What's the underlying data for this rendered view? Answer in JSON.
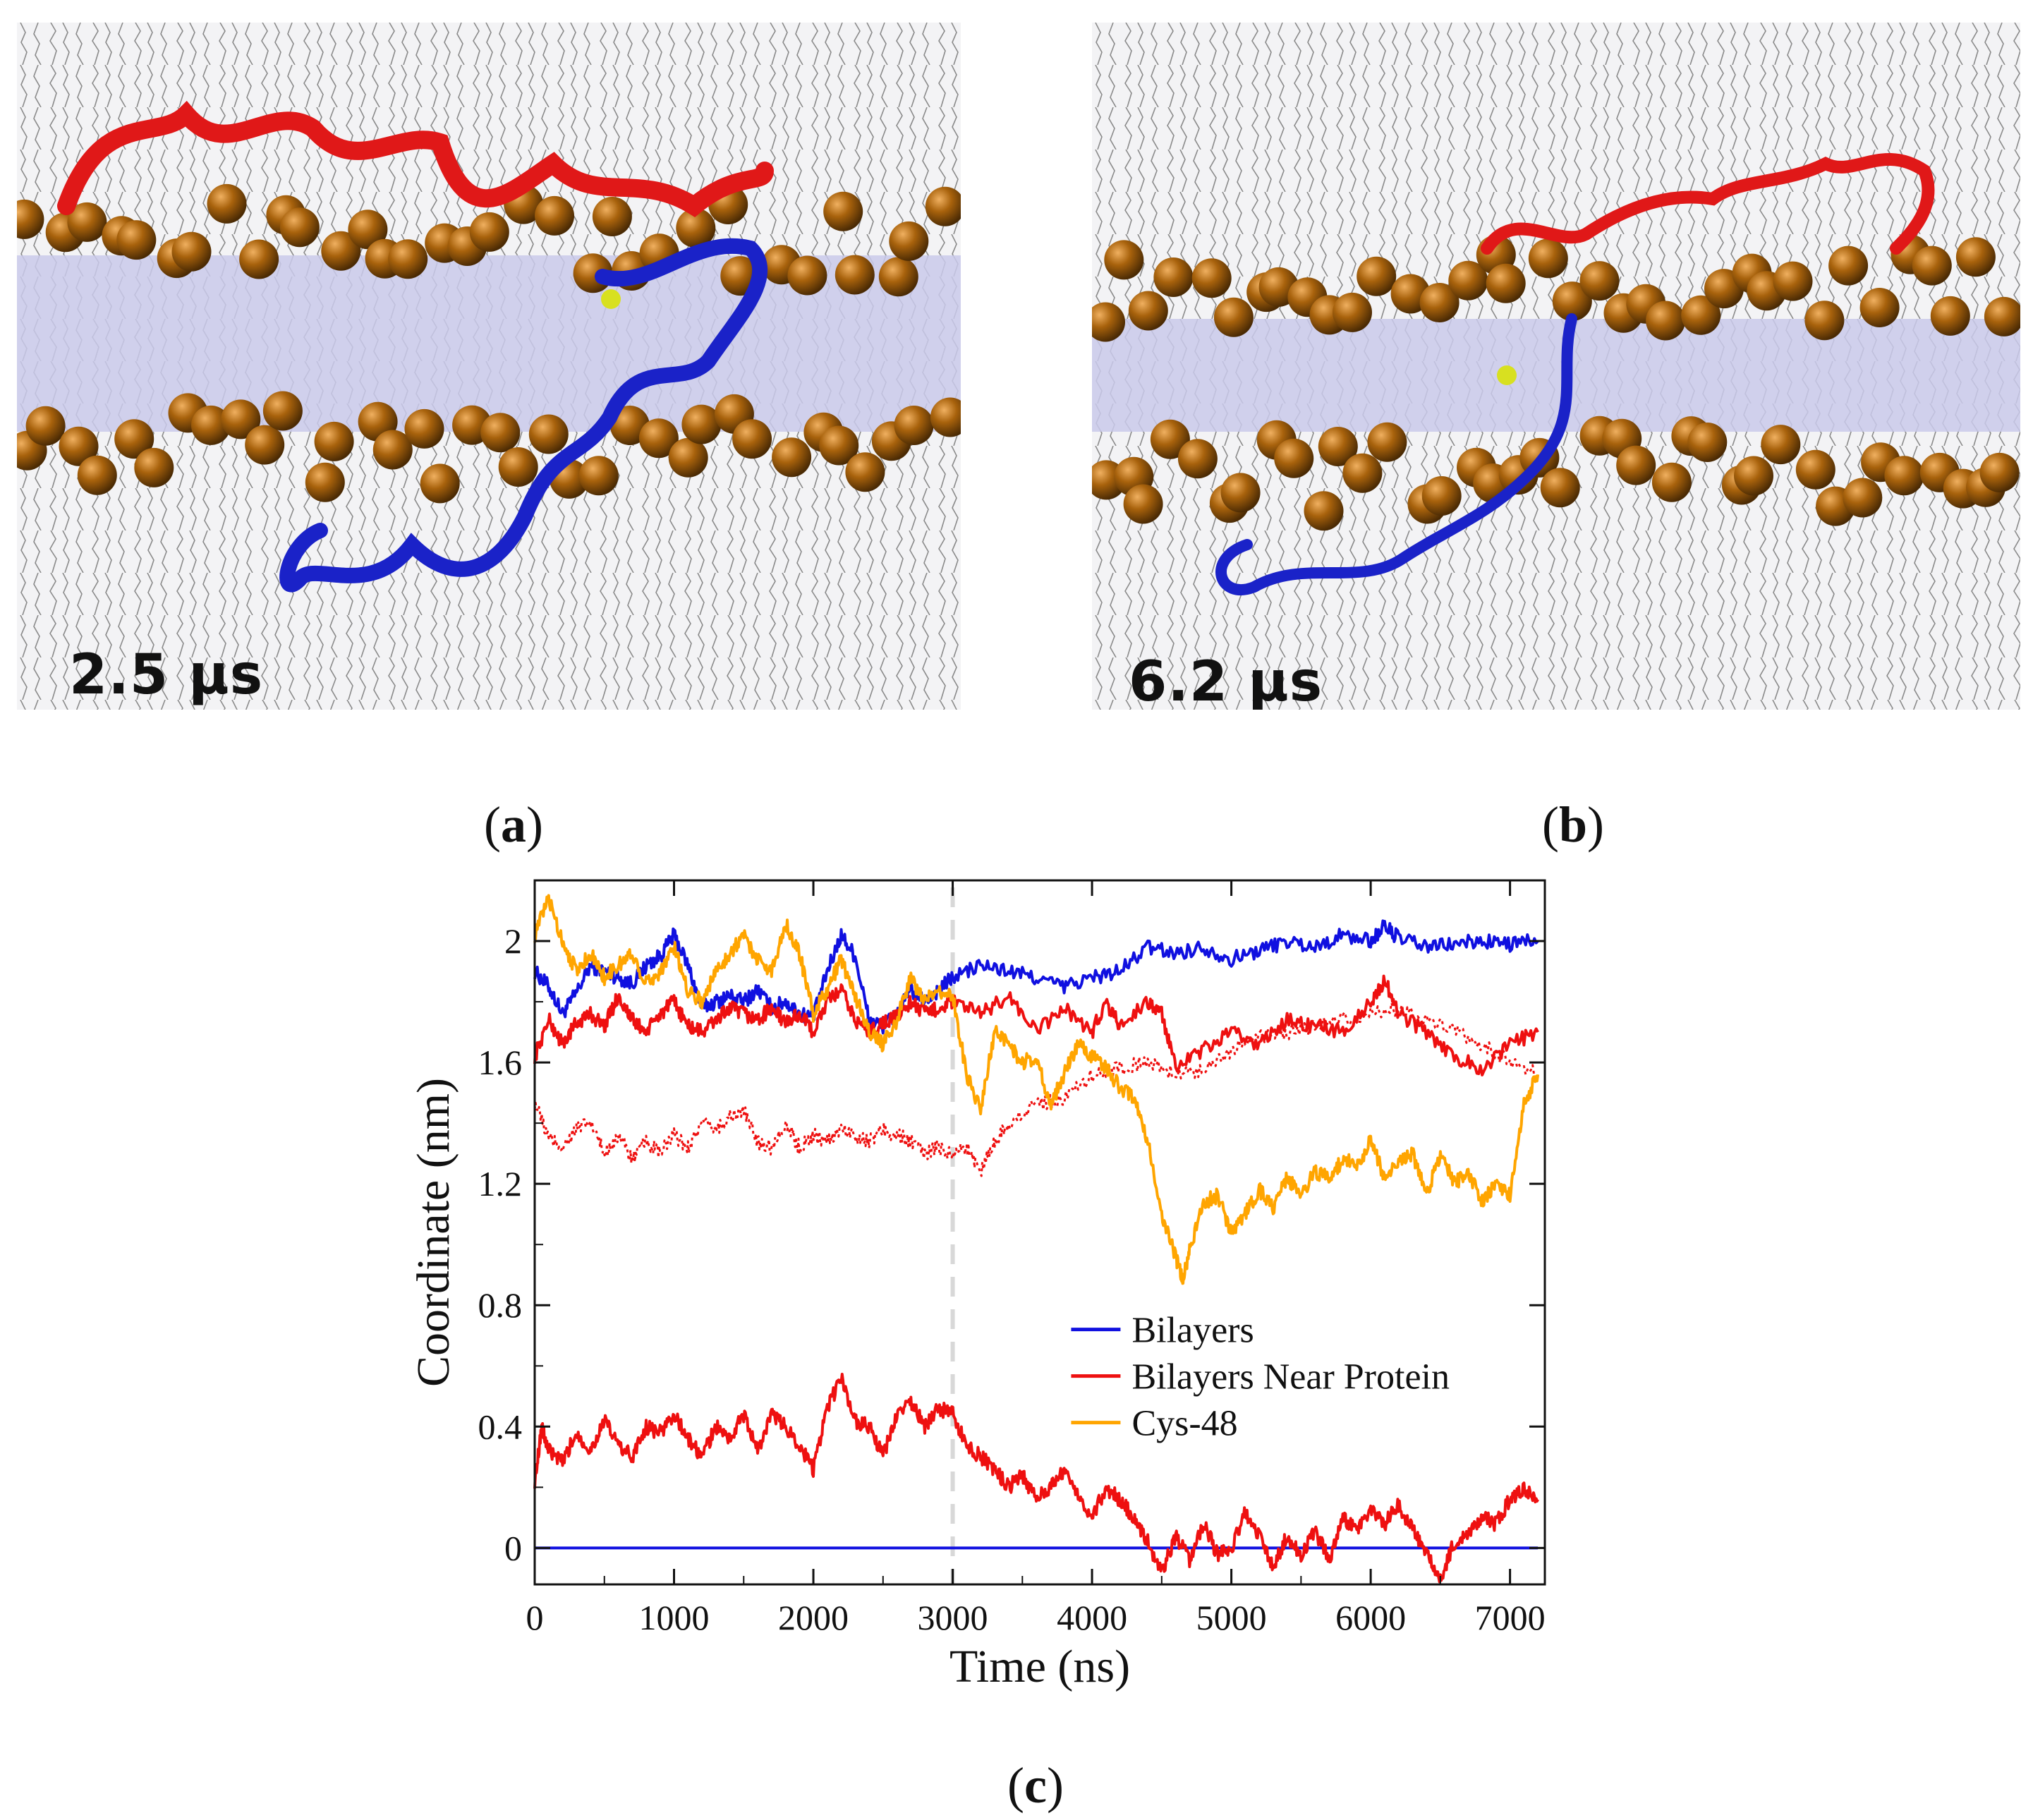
{
  "panels": {
    "a": {
      "time_label": "2.5 μs",
      "caption_letter": "a"
    },
    "b": {
      "time_label": "6.2 μs",
      "caption_letter": "b"
    },
    "c": {
      "caption_letter": "c"
    }
  },
  "colors": {
    "bilayers": "#1010e0",
    "near_protein": "#ee1010",
    "cys48": "#ffa500",
    "phosphate": "#a0600a",
    "membrane": "#c8c8e8",
    "lipid_lines": "#888888",
    "protein_red": "#e01818",
    "protein_blue": "#1a22c8",
    "dashed_marker": "#d8d8d8"
  },
  "chart_data": {
    "type": "line",
    "xlabel": "Time (ns)",
    "ylabel": "Coordinate (nm)",
    "xlim": [
      0,
      7250
    ],
    "ylim": [
      -0.12,
      2.2
    ],
    "xticks": [
      0,
      1000,
      2000,
      3000,
      4000,
      5000,
      6000,
      7000
    ],
    "yticks": [
      0,
      0.4,
      0.8,
      1.2,
      1.6,
      2
    ],
    "ytick_labels": [
      "0",
      "0.4",
      "0.8",
      "1.2",
      "1.6",
      "2"
    ],
    "vline_x": 3000,
    "legend": {
      "position": "center-right",
      "entries": [
        "Bilayers",
        "Bilayers Near Protein",
        "Cys-48"
      ]
    },
    "series": [
      {
        "name": "Bilayers (upper)",
        "legend": "Bilayers",
        "style": "solid",
        "x": [
          0,
          100,
          200,
          300,
          400,
          500,
          600,
          700,
          800,
          900,
          1000,
          1100,
          1200,
          1300,
          1400,
          1500,
          1600,
          1700,
          1800,
          1900,
          2000,
          2100,
          2200,
          2300,
          2400,
          2500,
          2600,
          2700,
          2800,
          2900,
          3000,
          3200,
          3400,
          3600,
          3800,
          4000,
          4200,
          4400,
          4600,
          4800,
          5000,
          5200,
          5400,
          5600,
          5800,
          6000,
          6100,
          6200,
          6400,
          6600,
          6800,
          7000,
          7200
        ],
        "y": [
          1.9,
          1.85,
          1.76,
          1.83,
          1.92,
          1.9,
          1.88,
          1.86,
          1.92,
          1.95,
          2.02,
          1.92,
          1.78,
          1.8,
          1.82,
          1.8,
          1.84,
          1.78,
          1.8,
          1.76,
          1.75,
          1.9,
          2.02,
          1.95,
          1.74,
          1.72,
          1.76,
          1.84,
          1.8,
          1.84,
          1.88,
          1.92,
          1.9,
          1.88,
          1.85,
          1.88,
          1.9,
          1.98,
          1.96,
          1.98,
          1.94,
          1.97,
          2.0,
          1.98,
          2.02,
          2.0,
          2.05,
          2.01,
          1.98,
          1.99,
          2.0,
          1.99,
          2.0
        ]
      },
      {
        "name": "Bilayers (lower)",
        "legend": "Bilayers",
        "style": "solid",
        "x": [
          0,
          7200
        ],
        "y": [
          0,
          0
        ]
      },
      {
        "name": "Bilayers Near Protein (upper)",
        "legend": "Bilayers Near Protein",
        "style": "solid",
        "x": [
          0,
          100,
          200,
          300,
          400,
          500,
          600,
          700,
          800,
          900,
          1000,
          1100,
          1200,
          1300,
          1400,
          1500,
          1600,
          1700,
          1800,
          1900,
          2000,
          2100,
          2200,
          2300,
          2400,
          2500,
          2600,
          2700,
          2800,
          2900,
          3000,
          3200,
          3400,
          3600,
          3800,
          4000,
          4100,
          4200,
          4400,
          4500,
          4600,
          4800,
          5000,
          5200,
          5400,
          5600,
          5800,
          6000,
          6100,
          6200,
          6400,
          6600,
          6800,
          7000,
          7200
        ],
        "y": [
          1.62,
          1.74,
          1.66,
          1.73,
          1.76,
          1.72,
          1.82,
          1.74,
          1.7,
          1.76,
          1.8,
          1.72,
          1.7,
          1.74,
          1.78,
          1.76,
          1.74,
          1.78,
          1.73,
          1.76,
          1.7,
          1.8,
          1.84,
          1.74,
          1.7,
          1.73,
          1.75,
          1.8,
          1.76,
          1.78,
          1.8,
          1.76,
          1.82,
          1.7,
          1.78,
          1.7,
          1.8,
          1.72,
          1.8,
          1.76,
          1.58,
          1.64,
          1.7,
          1.66,
          1.74,
          1.72,
          1.7,
          1.8,
          1.87,
          1.76,
          1.7,
          1.62,
          1.58,
          1.66,
          1.7
        ]
      },
      {
        "name": "Bilayers Near Protein (dotted)",
        "legend": "Bilayers Near Protein",
        "style": "dotted",
        "x": [
          0,
          100,
          200,
          300,
          400,
          500,
          600,
          700,
          800,
          900,
          1000,
          1100,
          1200,
          1300,
          1400,
          1500,
          1600,
          1700,
          1800,
          1900,
          2000,
          2100,
          2200,
          2300,
          2400,
          2500,
          2600,
          2700,
          2800,
          2900,
          3000,
          3100,
          3200,
          3300,
          3400,
          3600,
          3800,
          4000,
          4200,
          4400,
          4600,
          4800,
          5000,
          5200,
          5400,
          5600,
          5800,
          6000,
          6200,
          6400,
          6600,
          6800,
          7000,
          7200
        ],
        "y": [
          1.47,
          1.35,
          1.32,
          1.38,
          1.4,
          1.3,
          1.36,
          1.28,
          1.34,
          1.3,
          1.36,
          1.32,
          1.4,
          1.38,
          1.42,
          1.44,
          1.34,
          1.32,
          1.4,
          1.32,
          1.36,
          1.34,
          1.38,
          1.36,
          1.34,
          1.38,
          1.36,
          1.34,
          1.3,
          1.32,
          1.3,
          1.32,
          1.24,
          1.34,
          1.4,
          1.46,
          1.48,
          1.56,
          1.58,
          1.6,
          1.56,
          1.58,
          1.64,
          1.68,
          1.7,
          1.72,
          1.74,
          1.76,
          1.78,
          1.74,
          1.7,
          1.66,
          1.6,
          1.56
        ]
      },
      {
        "name": "Bilayers Near Protein (lower)",
        "legend": "Bilayers Near Protein",
        "style": "solid",
        "x": [
          0,
          50,
          100,
          200,
          300,
          400,
          500,
          600,
          700,
          800,
          900,
          1000,
          1100,
          1200,
          1300,
          1400,
          1500,
          1600,
          1700,
          1800,
          1900,
          2000,
          2100,
          2200,
          2300,
          2400,
          2500,
          2600,
          2700,
          2800,
          2900,
          3000,
          3100,
          3200,
          3300,
          3400,
          3500,
          3600,
          3700,
          3800,
          3900,
          4000,
          4100,
          4200,
          4300,
          4400,
          4500,
          4600,
          4700,
          4800,
          4900,
          5000,
          5100,
          5200,
          5300,
          5400,
          5500,
          5600,
          5700,
          5800,
          5900,
          6000,
          6100,
          6200,
          6300,
          6400,
          6500,
          6600,
          6700,
          6800,
          6900,
          7000,
          7100,
          7200
        ],
        "y": [
          0.22,
          0.4,
          0.32,
          0.28,
          0.38,
          0.32,
          0.42,
          0.34,
          0.3,
          0.4,
          0.38,
          0.44,
          0.36,
          0.3,
          0.4,
          0.36,
          0.44,
          0.32,
          0.44,
          0.4,
          0.34,
          0.26,
          0.46,
          0.56,
          0.42,
          0.4,
          0.3,
          0.44,
          0.48,
          0.4,
          0.46,
          0.44,
          0.34,
          0.3,
          0.26,
          0.2,
          0.24,
          0.16,
          0.2,
          0.26,
          0.18,
          0.1,
          0.2,
          0.16,
          0.1,
          0.02,
          -0.08,
          0.04,
          -0.04,
          0.08,
          -0.02,
          0.0,
          0.12,
          0.04,
          -0.06,
          0.04,
          -0.02,
          0.06,
          -0.04,
          0.1,
          0.06,
          0.12,
          0.08,
          0.14,
          0.06,
          -0.02,
          -0.1,
          0.02,
          0.04,
          0.1,
          0.08,
          0.16,
          0.2,
          0.16
        ]
      },
      {
        "name": "Cys-48",
        "legend": "Cys-48",
        "style": "solid",
        "x": [
          0,
          100,
          200,
          300,
          400,
          500,
          600,
          700,
          800,
          900,
          1000,
          1100,
          1200,
          1300,
          1400,
          1500,
          1600,
          1700,
          1800,
          1900,
          2000,
          2100,
          2200,
          2300,
          2400,
          2500,
          2600,
          2700,
          2800,
          2900,
          3000,
          3100,
          3200,
          3300,
          3400,
          3500,
          3600,
          3700,
          3800,
          3900,
          4000,
          4100,
          4200,
          4300,
          4400,
          4500,
          4600,
          4650,
          4700,
          4800,
          4900,
          5000,
          5100,
          5200,
          5300,
          5400,
          5500,
          5600,
          5700,
          5800,
          5900,
          6000,
          6100,
          6200,
          6300,
          6400,
          6500,
          6600,
          6700,
          6800,
          6900,
          7000,
          7100,
          7200
        ],
        "y": [
          2.02,
          2.14,
          2.0,
          1.9,
          1.96,
          1.88,
          1.92,
          1.96,
          1.86,
          1.9,
          1.98,
          1.84,
          1.8,
          1.9,
          1.96,
          2.02,
          1.94,
          1.9,
          2.06,
          1.96,
          1.76,
          1.84,
          1.94,
          1.82,
          1.7,
          1.66,
          1.74,
          1.88,
          1.8,
          1.84,
          1.82,
          1.56,
          1.44,
          1.7,
          1.66,
          1.6,
          1.62,
          1.46,
          1.56,
          1.66,
          1.62,
          1.58,
          1.52,
          1.48,
          1.34,
          1.1,
          0.96,
          0.88,
          0.98,
          1.14,
          1.16,
          1.04,
          1.1,
          1.18,
          1.12,
          1.22,
          1.16,
          1.24,
          1.22,
          1.28,
          1.26,
          1.34,
          1.22,
          1.28,
          1.3,
          1.16,
          1.3,
          1.2,
          1.24,
          1.14,
          1.2,
          1.16,
          1.46,
          1.56
        ]
      }
    ]
  }
}
